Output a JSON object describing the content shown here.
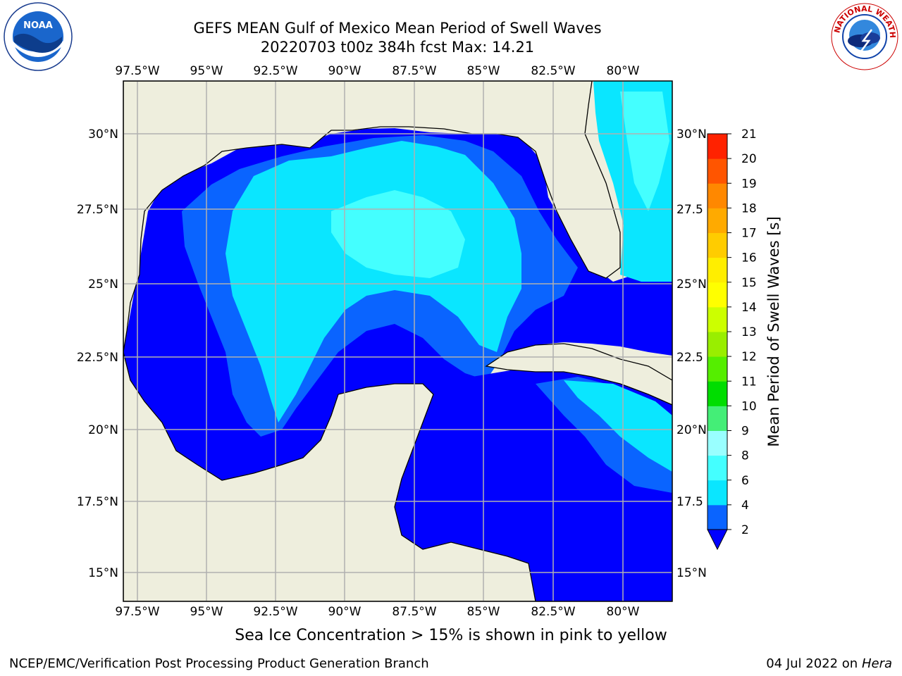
{
  "header": {
    "title_line1": "GEFS MEAN Gulf of Mexico Mean Period of Swell Waves",
    "title_line2": "20220703 t00z 384h fcst   Max: 14.21"
  },
  "logos": {
    "left": "noara-logo",
    "left_text": "NOAA",
    "left_ring_text": "NATIONAL OCEANIC AND ATMOSPHERIC ADMINISTRATION · U.S. DEPARTMENT OF COMMERCE",
    "right": "national-weather-service-logo",
    "right_ring_text": "NATIONAL WEATHER SERVICE"
  },
  "map": {
    "lon_labels": [
      "97.5°W",
      "95°W",
      "92.5°W",
      "90°W",
      "87.5°W",
      "85°W",
      "82.5°W",
      "80°W"
    ],
    "lat_labels_left": [
      "30°N",
      "27.5°N",
      "25°N",
      "22.5°N",
      "20°N",
      "17.5°N",
      "15°N"
    ],
    "lat_labels_right": [
      "30°N",
      "27.5",
      "25°N",
      "22.5",
      "20°N",
      "17.5",
      "15°N"
    ],
    "land_color": "#eeeedd",
    "grid_color": "#b0b0b0"
  },
  "colorbar": {
    "label": "Mean Period of Swell Waves [s]",
    "ticks": [
      "2",
      "4",
      "6",
      "8",
      "9",
      "10",
      "11",
      "12",
      "13",
      "14",
      "15",
      "16",
      "17",
      "18",
      "19",
      "20",
      "21"
    ],
    "colors": [
      "#0a64ff",
      "#0ae6ff",
      "#44ffff",
      "#99ffff",
      "#44ee77",
      "#00dd00",
      "#55ee00",
      "#99ee00",
      "#ccff00",
      "#ffff00",
      "#ffee00",
      "#ffcc00",
      "#ffaa00",
      "#ff8800",
      "#ff5500",
      "#ff2200",
      "#ff0000"
    ],
    "under_color": "#0000ff"
  },
  "subtitle": "Sea Ice Concentration > 15% is shown in pink to yellow",
  "footer": {
    "left": "NCEP/EMC/Verification Post Processing Product Generation Branch",
    "date": "04 Jul 2022 on ",
    "machine": "Hera"
  }
}
